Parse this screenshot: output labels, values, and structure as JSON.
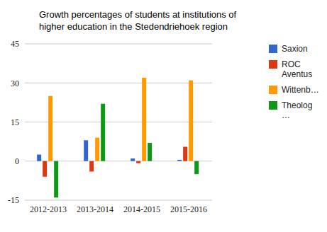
{
  "chart_data": {
    "type": "bar",
    "title": "Growth percentages of students at institutions of higher education in the Stedendriehoek region",
    "categories": [
      "2012-2013",
      "2013-2014",
      "2014-2015",
      "2015-2016"
    ],
    "series": [
      {
        "name": "Saxion",
        "color": "#3366cc",
        "values": [
          2.5,
          8,
          1,
          0.5
        ]
      },
      {
        "name": "ROC Aventus",
        "color": "#dc3912",
        "values": [
          -6,
          -4,
          -0.8,
          5.5
        ]
      },
      {
        "name": "Wittenb…",
        "color": "#ff9900",
        "values": [
          25,
          9,
          32,
          31
        ]
      },
      {
        "name": "Theolog…",
        "color": "#109618",
        "values": [
          -14,
          22,
          7,
          -5
        ]
      }
    ],
    "ylim": [
      -15,
      45
    ],
    "yticks": [
      -15,
      0,
      15,
      30,
      45
    ],
    "grid": true,
    "legend": "right"
  }
}
